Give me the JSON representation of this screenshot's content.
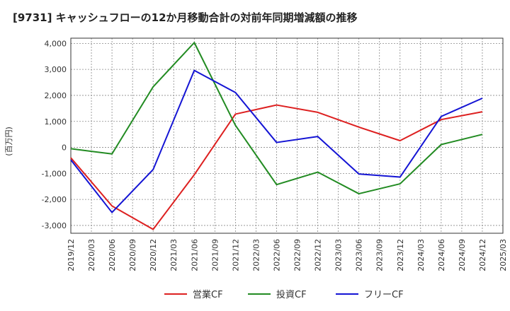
{
  "chart_data": {
    "type": "line",
    "title": "[9731]  キャッシュフローの12か月移動合計の対前年同期増減額の推移",
    "ylabel": "(百万円)",
    "xlabel": "",
    "ylim": [
      -3300,
      4200
    ],
    "yticks": [
      4000,
      3000,
      2000,
      1000,
      0,
      -1000,
      -2000,
      -3000
    ],
    "ytick_labels": [
      "4,000",
      "3,000",
      "2,000",
      "1,000",
      "0",
      "-1,000",
      "-2,000",
      "-3,000"
    ],
    "x_labels": [
      "2019/12",
      "2020/03",
      "2020/06",
      "2020/09",
      "2020/12",
      "2021/03",
      "2021/06",
      "2021/09",
      "2021/12",
      "2022/03",
      "2022/06",
      "2022/09",
      "2022/12",
      "2023/03",
      "2023/06",
      "2023/09",
      "2023/12",
      "2024/03",
      "2024/06",
      "2024/09",
      "2024/12",
      "2025/03"
    ],
    "grid": true,
    "legend_position": "bottom",
    "series": [
      {
        "name": "営業CF",
        "color": "#dd2020",
        "x": [
          "2019/12",
          "2020/06",
          "2020/12",
          "2021/06",
          "2021/12",
          "2022/06",
          "2022/12",
          "2023/06",
          "2023/12",
          "2024/06",
          "2024/12"
        ],
        "values": [
          -400,
          -2250,
          -3150,
          -1050,
          1280,
          1630,
          1350,
          780,
          260,
          1070,
          1370
        ]
      },
      {
        "name": "投資CF",
        "color": "#228b22",
        "x": [
          "2019/12",
          "2020/06",
          "2020/12",
          "2021/06",
          "2021/12",
          "2022/06",
          "2022/12",
          "2023/06",
          "2023/12",
          "2024/06",
          "2024/12"
        ],
        "values": [
          -50,
          -250,
          2330,
          4030,
          850,
          -1430,
          -950,
          -1780,
          -1400,
          110,
          500
        ]
      },
      {
        "name": "フリーCF",
        "color": "#1414d4",
        "x": [
          "2019/12",
          "2020/06",
          "2020/12",
          "2021/06",
          "2021/12",
          "2022/06",
          "2022/12",
          "2023/06",
          "2023/12",
          "2024/06",
          "2024/12"
        ],
        "values": [
          -480,
          -2500,
          -850,
          2960,
          2110,
          190,
          420,
          -1020,
          -1140,
          1190,
          1890
        ]
      }
    ]
  }
}
